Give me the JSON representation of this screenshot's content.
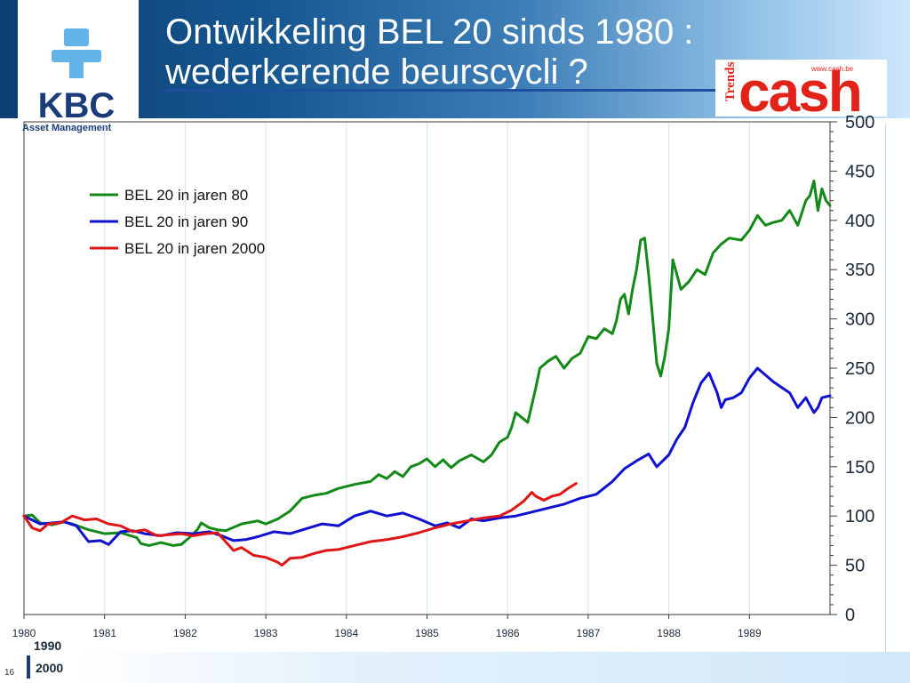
{
  "title": "Ontwikkeling BEL 20 sinds 1980 :\nwederkerende beurscycli ?",
  "logo": {
    "name": "KBC",
    "subtitle": "Asset Management",
    "brand_color": "#1a3c78",
    "accent_color": "#62b4e8"
  },
  "trends_cash_logo": {
    "small_text": "Trends",
    "main_text": "cash",
    "url_text": "www.cash.be",
    "color": "#e2231a"
  },
  "footer": {
    "line1": "1990",
    "line2": "2000",
    "slide_number": "16"
  },
  "chart_data": {
    "type": "line",
    "title": "",
    "xlabel": "",
    "ylabel": "",
    "x_tick_labels": [
      "1980",
      "1981",
      "1982",
      "1983",
      "1984",
      "1985",
      "1986",
      "1987",
      "1988",
      "1989"
    ],
    "x_range": [
      1980,
      1990
    ],
    "y_range": [
      0,
      500
    ],
    "y_ticks": [
      0,
      50,
      100,
      150,
      200,
      250,
      300,
      350,
      400,
      450,
      500
    ],
    "y_axis_side": "right",
    "grid": "vertical",
    "legend_position": "top-left",
    "series": [
      {
        "name": "BEL 20 in jaren 80",
        "color": "#138a18",
        "x": [
          1980,
          1980.1,
          1980.2,
          1980.35,
          1980.5,
          1980.6,
          1980.8,
          1981,
          1981.2,
          1981.4,
          1981.45,
          1981.55,
          1981.7,
          1981.85,
          1981.95,
          1982.05,
          1982.15,
          1982.2,
          1982.3,
          1982.4,
          1982.5,
          1982.7,
          1982.9,
          1983,
          1983.15,
          1983.3,
          1983.45,
          1983.6,
          1983.75,
          1983.9,
          1984.1,
          1984.3,
          1984.4,
          1984.5,
          1984.6,
          1984.7,
          1984.8,
          1984.9,
          1985,
          1985.1,
          1985.2,
          1985.3,
          1985.4,
          1985.55,
          1985.7,
          1985.8,
          1985.9,
          1986,
          1986.05,
          1986.1,
          1986.25,
          1986.35,
          1986.4,
          1986.5,
          1986.6,
          1986.7,
          1986.8,
          1986.9,
          1987,
          1987.1,
          1987.2,
          1987.3,
          1987.35,
          1987.4,
          1987.45,
          1987.5,
          1987.55,
          1987.6,
          1987.65,
          1987.7,
          1987.75,
          1987.8,
          1987.85,
          1987.9,
          1987.95,
          1988,
          1988.05,
          1988.1,
          1988.15,
          1988.25,
          1988.35,
          1988.45,
          1988.55,
          1988.65,
          1988.75,
          1988.9,
          1989,
          1989.1,
          1989.2,
          1989.3,
          1989.4,
          1989.5,
          1989.6,
          1989.7,
          1989.75,
          1989.8,
          1989.85,
          1989.9,
          1989.95,
          1990
        ],
        "y": [
          100,
          101,
          93,
          91,
          94,
          92,
          86,
          82,
          83,
          78,
          72,
          70,
          73,
          70,
          71,
          78,
          86,
          93,
          88,
          86,
          85,
          92,
          95,
          92,
          97,
          105,
          118,
          121,
          123,
          128,
          132,
          135,
          142,
          138,
          145,
          140,
          150,
          153,
          158,
          150,
          157,
          149,
          156,
          162,
          155,
          162,
          175,
          180,
          190,
          205,
          195,
          230,
          250,
          257,
          262,
          250,
          260,
          265,
          282,
          280,
          290,
          285,
          298,
          320,
          325,
          305,
          330,
          350,
          380,
          382,
          345,
          300,
          255,
          242,
          262,
          290,
          360,
          345,
          330,
          338,
          350,
          345,
          367,
          376,
          382,
          380,
          390,
          405,
          395,
          398,
          400,
          410,
          395,
          420,
          425,
          440,
          410,
          432,
          420,
          415
        ]
      },
      {
        "name": "BEL 20 in jaren 90",
        "color": "#1010d0",
        "x": [
          1980,
          1980.1,
          1980.2,
          1980.35,
          1980.5,
          1980.65,
          1980.8,
          1980.95,
          1981.05,
          1981.2,
          1981.35,
          1981.5,
          1981.7,
          1981.9,
          1982.1,
          1982.3,
          1982.45,
          1982.6,
          1982.75,
          1982.9,
          1983.1,
          1983.3,
          1983.5,
          1983.7,
          1983.9,
          1984.1,
          1984.3,
          1984.5,
          1984.7,
          1984.9,
          1985.1,
          1985.25,
          1985.4,
          1985.55,
          1985.7,
          1985.9,
          1986.1,
          1986.3,
          1986.5,
          1986.7,
          1986.9,
          1987.1,
          1987.3,
          1987.45,
          1987.6,
          1987.75,
          1987.85,
          1988,
          1988.1,
          1988.2,
          1988.3,
          1988.4,
          1988.5,
          1988.6,
          1988.65,
          1988.7,
          1988.8,
          1988.9,
          1989,
          1989.1,
          1989.3,
          1989.5,
          1989.6,
          1989.7,
          1989.8,
          1989.85,
          1989.9,
          1990
        ],
        "y": [
          100,
          96,
          92,
          93,
          94,
          90,
          74,
          75,
          71,
          84,
          85,
          82,
          80,
          83,
          82,
          84,
          80,
          75,
          76,
          79,
          84,
          82,
          87,
          92,
          90,
          100,
          105,
          100,
          103,
          97,
          90,
          93,
          88,
          97,
          95,
          98,
          100,
          104,
          108,
          112,
          118,
          122,
          135,
          148,
          156,
          163,
          150,
          162,
          178,
          190,
          215,
          235,
          245,
          225,
          210,
          218,
          220,
          225,
          240,
          250,
          236,
          225,
          210,
          220,
          205,
          210,
          220,
          222
        ]
      },
      {
        "name": "BEL 20 in jaren 2000",
        "color": "#e01515",
        "x": [
          1980,
          1980.1,
          1980.2,
          1980.3,
          1980.45,
          1980.6,
          1980.75,
          1980.9,
          1981.05,
          1981.2,
          1981.35,
          1981.5,
          1981.65,
          1981.8,
          1981.95,
          1982.1,
          1982.25,
          1982.4,
          1982.5,
          1982.6,
          1982.7,
          1982.85,
          1983,
          1983.15,
          1983.2,
          1983.3,
          1983.45,
          1983.6,
          1983.75,
          1983.9,
          1984.1,
          1984.3,
          1984.5,
          1984.7,
          1984.9,
          1985.1,
          1985.3,
          1985.5,
          1985.7,
          1985.9,
          1986.05,
          1986.2,
          1986.3,
          1986.35,
          1986.45,
          1986.55,
          1986.65,
          1986.75,
          1986.85
        ],
        "y": [
          100,
          88,
          85,
          92,
          93,
          100,
          96,
          97,
          92,
          90,
          84,
          86,
          80,
          81,
          82,
          80,
          82,
          83,
          74,
          65,
          68,
          60,
          58,
          53,
          50,
          57,
          58,
          62,
          65,
          66,
          70,
          74,
          76,
          79,
          83,
          88,
          92,
          95,
          98,
          100,
          106,
          115,
          124,
          120,
          116,
          120,
          122,
          128,
          133
        ]
      }
    ]
  }
}
